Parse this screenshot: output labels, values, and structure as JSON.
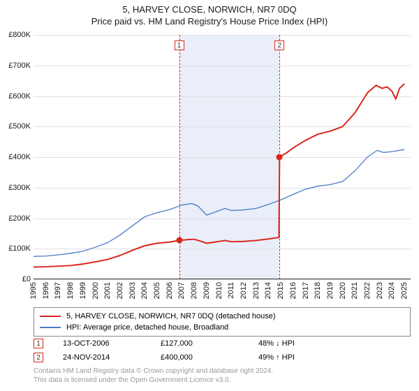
{
  "title": {
    "main": "5, HARVEY CLOSE, NORWICH, NR7 0DQ",
    "sub": "Price paid vs. HM Land Registry's House Price Index (HPI)",
    "fontsize": 13,
    "color": "#1a1a1a"
  },
  "chart": {
    "type": "line",
    "background_color": "#ffffff",
    "grid_color": "#e0e0e0",
    "axis_color": "#333333",
    "y": {
      "min": 0,
      "max": 800000,
      "ticks": [
        0,
        100000,
        200000,
        300000,
        400000,
        500000,
        600000,
        700000,
        800000
      ],
      "tick_labels": [
        "£0",
        "£100K",
        "£200K",
        "£300K",
        "£400K",
        "£500K",
        "£600K",
        "£700K",
        "£800K"
      ],
      "label_fontsize": 11
    },
    "x": {
      "min": 1995,
      "max": 2025.5,
      "ticks": [
        1995,
        1996,
        1997,
        1998,
        1999,
        2000,
        2001,
        2002,
        2003,
        2004,
        2005,
        2006,
        2007,
        2008,
        2009,
        2010,
        2011,
        2012,
        2013,
        2014,
        2015,
        2016,
        2017,
        2018,
        2019,
        2020,
        2021,
        2022,
        2023,
        2024,
        2025
      ],
      "tick_labels": [
        "1995",
        "1996",
        "1997",
        "1998",
        "1999",
        "2000",
        "2001",
        "2002",
        "2003",
        "2004",
        "2005",
        "2006",
        "2007",
        "2008",
        "2009",
        "2010",
        "2011",
        "2012",
        "2013",
        "2014",
        "2015",
        "2016",
        "2017",
        "2018",
        "2019",
        "2020",
        "2021",
        "2022",
        "2023",
        "2024",
        "2025"
      ],
      "label_fontsize": 11,
      "label_rotation": -90
    },
    "series": [
      {
        "name": "price_paid",
        "label": "5, HARVEY CLOSE, NORWICH, NR7 0DQ (detached house)",
        "color": "#d9261c",
        "line_width": 2,
        "points": [
          [
            1995.0,
            40000
          ],
          [
            1996.0,
            41000
          ],
          [
            1997.0,
            43000
          ],
          [
            1998.0,
            45000
          ],
          [
            1999.0,
            50000
          ],
          [
            2000.0,
            57000
          ],
          [
            2001.0,
            65000
          ],
          [
            2002.0,
            78000
          ],
          [
            2003.0,
            95000
          ],
          [
            2004.0,
            110000
          ],
          [
            2005.0,
            118000
          ],
          [
            2006.0,
            122000
          ],
          [
            2006.78,
            127000
          ],
          [
            2007.5,
            130000
          ],
          [
            2008.0,
            131000
          ],
          [
            2008.5,
            125000
          ],
          [
            2009.0,
            118000
          ],
          [
            2009.7,
            122000
          ],
          [
            2010.5,
            127000
          ],
          [
            2011.0,
            123000
          ],
          [
            2012.0,
            124000
          ],
          [
            2013.0,
            127000
          ],
          [
            2014.0,
            132000
          ],
          [
            2014.85,
            137000
          ],
          [
            2014.9,
            400000
          ],
          [
            2015.5,
            415000
          ],
          [
            2016.0,
            430000
          ],
          [
            2017.0,
            455000
          ],
          [
            2018.0,
            475000
          ],
          [
            2019.0,
            485000
          ],
          [
            2020.0,
            500000
          ],
          [
            2021.0,
            545000
          ],
          [
            2022.0,
            610000
          ],
          [
            2022.7,
            635000
          ],
          [
            2023.2,
            625000
          ],
          [
            2023.6,
            630000
          ],
          [
            2024.0,
            615000
          ],
          [
            2024.3,
            590000
          ],
          [
            2024.6,
            625000
          ],
          [
            2025.0,
            640000
          ]
        ]
      },
      {
        "name": "hpi",
        "label": "HPI: Average price, detached house, Broadland",
        "color": "#4a7bc8",
        "line_width": 1.3,
        "points": [
          [
            1995.0,
            75000
          ],
          [
            1996.0,
            76000
          ],
          [
            1997.0,
            80000
          ],
          [
            1998.0,
            85000
          ],
          [
            1999.0,
            92000
          ],
          [
            2000.0,
            105000
          ],
          [
            2001.0,
            120000
          ],
          [
            2002.0,
            145000
          ],
          [
            2003.0,
            175000
          ],
          [
            2004.0,
            205000
          ],
          [
            2005.0,
            218000
          ],
          [
            2006.0,
            228000
          ],
          [
            2007.0,
            243000
          ],
          [
            2007.8,
            248000
          ],
          [
            2008.3,
            240000
          ],
          [
            2009.0,
            210000
          ],
          [
            2009.8,
            222000
          ],
          [
            2010.5,
            232000
          ],
          [
            2011.0,
            225000
          ],
          [
            2012.0,
            227000
          ],
          [
            2013.0,
            232000
          ],
          [
            2014.0,
            245000
          ],
          [
            2015.0,
            260000
          ],
          [
            2016.0,
            278000
          ],
          [
            2017.0,
            295000
          ],
          [
            2018.0,
            305000
          ],
          [
            2019.0,
            310000
          ],
          [
            2020.0,
            320000
          ],
          [
            2021.0,
            355000
          ],
          [
            2022.0,
            400000
          ],
          [
            2022.8,
            422000
          ],
          [
            2023.3,
            415000
          ],
          [
            2024.0,
            418000
          ],
          [
            2025.0,
            425000
          ]
        ]
      }
    ],
    "sale_band": {
      "from_year": 2006.78,
      "to_year": 2014.9,
      "fill": "#e9eef9"
    },
    "sale_markers": [
      {
        "id": "1",
        "year": 2006.78,
        "price": 127000,
        "line_color": "#d9261c",
        "dot_color": "#d9261c",
        "marker_border": "#d9261c",
        "marker_bg": "#ffffff"
      },
      {
        "id": "2",
        "year": 2014.9,
        "price": 400000,
        "line_color": "#d9261c",
        "dot_color": "#d9261c",
        "marker_border": "#d9261c",
        "marker_bg": "#ffffff"
      }
    ]
  },
  "legend": {
    "border_color": "#888888",
    "fontsize": 11,
    "items": [
      {
        "color": "#d9261c",
        "width": 2.5,
        "label": "5, HARVEY CLOSE, NORWICH, NR7 0DQ (detached house)"
      },
      {
        "color": "#4a7bc8",
        "width": 1.3,
        "label": "HPI: Average price, detached house, Broadland"
      }
    ]
  },
  "sales_table": {
    "fontsize": 11,
    "rows": [
      {
        "marker": "1",
        "marker_border": "#d9261c",
        "date": "13-OCT-2006",
        "price": "£127,000",
        "hpi": "48% ↓ HPI"
      },
      {
        "marker": "2",
        "marker_border": "#d9261c",
        "date": "24-NOV-2014",
        "price": "£400,000",
        "hpi": "49% ↑ HPI"
      }
    ]
  },
  "footer": {
    "line1": "Contains HM Land Registry data © Crown copyright and database right 2024.",
    "line2": "This data is licensed under the Open Government Licence v3.0.",
    "color": "#999999",
    "fontsize": 10
  }
}
